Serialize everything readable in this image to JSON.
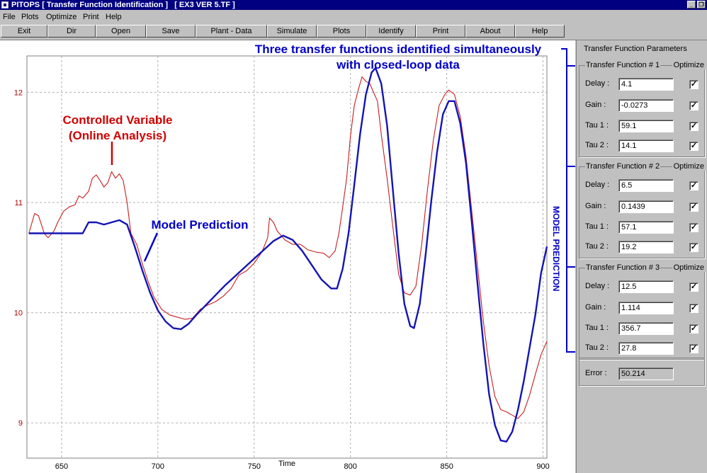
{
  "window": {
    "title": "PITOPS [ Transfer Function Identification ]   [ EX3 VER 5.TF ]",
    "min_glyph": "_",
    "restore_glyph": "❐"
  },
  "menu": [
    "File",
    "Plots",
    "Optimize",
    "Print",
    "Help"
  ],
  "toolbar": [
    "Exit",
    "Dir",
    "Open",
    "Save",
    "Plant - Data",
    "Simulate",
    "Plots",
    "Identify",
    "Print",
    "About",
    "Help"
  ],
  "panel": {
    "title": "Transfer Function Parameters",
    "optimize_label": "Optimize",
    "check_glyph": "✓",
    "groups": [
      {
        "title": "Transfer Function # 1",
        "fields": [
          {
            "label": "Delay :",
            "value": "4.1"
          },
          {
            "label": "Gain   :",
            "value": "-0.0273"
          },
          {
            "label": "Tau 1 :",
            "value": "59.1"
          },
          {
            "label": "Tau 2 :",
            "value": "14.1"
          }
        ]
      },
      {
        "title": "Transfer Function # 2",
        "fields": [
          {
            "label": "Delay :",
            "value": "6.5"
          },
          {
            "label": "Gain   :",
            "value": "0.1439"
          },
          {
            "label": "Tau 1 :",
            "value": "57.1"
          },
          {
            "label": "Tau 2 :",
            "value": "19.2"
          }
        ]
      },
      {
        "title": "Transfer Function # 3",
        "fields": [
          {
            "label": "Delay :",
            "value": "12.5"
          },
          {
            "label": "Gain   :",
            "value": "1.114"
          },
          {
            "label": "Tau 1 :",
            "value": "356.7"
          },
          {
            "label": "Tau 2 :",
            "value": "27.8"
          }
        ]
      }
    ],
    "error": {
      "label": "Error :",
      "value": "50.214"
    }
  },
  "plot": {
    "annotation_top_line1": "Three transfer functions identified simultaneously",
    "annotation_top_line2": "with closed-loop data",
    "annotation_cv_line1": "Controlled Variable",
    "annotation_cv_line2": "(Online Analysis)",
    "annotation_model": "Model Prediction",
    "side_label": "MODEL PREDICTION"
  },
  "chart_data": {
    "type": "line",
    "xlabel": "Time",
    "ylabel": "",
    "xlim": [
      632,
      902
    ],
    "ylim": [
      8.68,
      12.33
    ],
    "x_ticks": [
      650,
      700,
      750,
      800,
      850,
      900
    ],
    "y_ticks": [
      9,
      10,
      11,
      12
    ],
    "grid": true,
    "series": [
      {
        "name": "Controlled Variable (Online Analysis)",
        "color": "#c81e1e",
        "points": [
          [
            633,
            10.72
          ],
          [
            636,
            10.9
          ],
          [
            638,
            10.88
          ],
          [
            641,
            10.72
          ],
          [
            643,
            10.68
          ],
          [
            646,
            10.74
          ],
          [
            648,
            10.82
          ],
          [
            651,
            10.92
          ],
          [
            654,
            10.96
          ],
          [
            657,
            10.98
          ],
          [
            659,
            11.06
          ],
          [
            661,
            11.04
          ],
          [
            664,
            11.1
          ],
          [
            666,
            11.22
          ],
          [
            668,
            11.25
          ],
          [
            670,
            11.2
          ],
          [
            672,
            11.14
          ],
          [
            674,
            11.18
          ],
          [
            676,
            11.28
          ],
          [
            678,
            11.22
          ],
          [
            680,
            11.26
          ],
          [
            682,
            11.2
          ],
          [
            684,
            11.0
          ],
          [
            686,
            10.72
          ],
          [
            689,
            10.62
          ],
          [
            692,
            10.44
          ],
          [
            695,
            10.28
          ],
          [
            698,
            10.14
          ],
          [
            702,
            10.03
          ],
          [
            706,
            9.98
          ],
          [
            710,
            9.96
          ],
          [
            714,
            9.94
          ],
          [
            718,
            9.95
          ],
          [
            722,
            10.03
          ],
          [
            726,
            10.07
          ],
          [
            730,
            10.1
          ],
          [
            734,
            10.15
          ],
          [
            738,
            10.22
          ],
          [
            742,
            10.34
          ],
          [
            746,
            10.38
          ],
          [
            750,
            10.45
          ],
          [
            754,
            10.55
          ],
          [
            757,
            10.68
          ],
          [
            758,
            10.86
          ],
          [
            760,
            10.82
          ],
          [
            762,
            10.74
          ],
          [
            766,
            10.66
          ],
          [
            770,
            10.62
          ],
          [
            774,
            10.62
          ],
          [
            778,
            10.57
          ],
          [
            782,
            10.55
          ],
          [
            786,
            10.54
          ],
          [
            789,
            10.5
          ],
          [
            792,
            10.56
          ],
          [
            794,
            10.72
          ],
          [
            796,
            10.96
          ],
          [
            798,
            11.22
          ],
          [
            800,
            11.6
          ],
          [
            802,
            11.88
          ],
          [
            804,
            12.02
          ],
          [
            806,
            12.14
          ],
          [
            808,
            12.1
          ],
          [
            810,
            12.08
          ],
          [
            812,
            12.0
          ],
          [
            814,
            11.92
          ],
          [
            816,
            11.62
          ],
          [
            819,
            11.22
          ],
          [
            822,
            10.78
          ],
          [
            825,
            10.35
          ],
          [
            828,
            10.18
          ],
          [
            831,
            10.16
          ],
          [
            834,
            10.24
          ],
          [
            837,
            10.62
          ],
          [
            840,
            11.12
          ],
          [
            843,
            11.56
          ],
          [
            846,
            11.88
          ],
          [
            849,
            11.98
          ],
          [
            851,
            12.02
          ],
          [
            854,
            11.98
          ],
          [
            857,
            11.78
          ],
          [
            860,
            11.42
          ],
          [
            863,
            10.92
          ],
          [
            866,
            10.42
          ],
          [
            869,
            9.92
          ],
          [
            872,
            9.52
          ],
          [
            875,
            9.24
          ],
          [
            878,
            9.12
          ],
          [
            881,
            9.1
          ],
          [
            884,
            9.07
          ],
          [
            887,
            9.04
          ],
          [
            890,
            9.1
          ],
          [
            893,
            9.25
          ],
          [
            896,
            9.44
          ],
          [
            899,
            9.62
          ],
          [
            902,
            9.74
          ]
        ]
      },
      {
        "name": "Model Prediction",
        "color": "#1414b4",
        "points": [
          [
            633,
            10.72
          ],
          [
            661,
            10.72
          ],
          [
            664,
            10.82
          ],
          [
            668,
            10.82
          ],
          [
            672,
            10.8
          ],
          [
            676,
            10.82
          ],
          [
            680,
            10.84
          ],
          [
            684,
            10.8
          ],
          [
            688,
            10.6
          ],
          [
            692,
            10.38
          ],
          [
            696,
            10.18
          ],
          [
            700,
            10.02
          ],
          [
            704,
            9.92
          ],
          [
            708,
            9.86
          ],
          [
            712,
            9.85
          ],
          [
            716,
            9.9
          ],
          [
            720,
            9.98
          ],
          [
            725,
            10.07
          ],
          [
            730,
            10.16
          ],
          [
            735,
            10.25
          ],
          [
            740,
            10.33
          ],
          [
            745,
            10.41
          ],
          [
            750,
            10.49
          ],
          [
            755,
            10.57
          ],
          [
            760,
            10.65
          ],
          [
            765,
            10.7
          ],
          [
            770,
            10.66
          ],
          [
            775,
            10.56
          ],
          [
            780,
            10.43
          ],
          [
            785,
            10.3
          ],
          [
            790,
            10.22
          ],
          [
            793,
            10.22
          ],
          [
            796,
            10.4
          ],
          [
            799,
            10.72
          ],
          [
            802,
            11.16
          ],
          [
            805,
            11.62
          ],
          [
            808,
            11.98
          ],
          [
            811,
            12.18
          ],
          [
            813,
            12.22
          ],
          [
            816,
            12.08
          ],
          [
            819,
            11.7
          ],
          [
            822,
            11.12
          ],
          [
            825,
            10.54
          ],
          [
            828,
            10.08
          ],
          [
            831,
            9.88
          ],
          [
            833,
            9.86
          ],
          [
            836,
            10.08
          ],
          [
            839,
            10.52
          ],
          [
            842,
            11.02
          ],
          [
            845,
            11.46
          ],
          [
            848,
            11.8
          ],
          [
            851,
            11.92
          ],
          [
            854,
            11.92
          ],
          [
            857,
            11.72
          ],
          [
            860,
            11.36
          ],
          [
            863,
            10.82
          ],
          [
            866,
            10.26
          ],
          [
            869,
            9.72
          ],
          [
            872,
            9.26
          ],
          [
            875,
            8.98
          ],
          [
            878,
            8.84
          ],
          [
            881,
            8.83
          ],
          [
            884,
            8.92
          ],
          [
            887,
            9.12
          ],
          [
            890,
            9.38
          ],
          [
            893,
            9.68
          ],
          [
            896,
            9.98
          ],
          [
            899,
            10.36
          ],
          [
            902,
            10.6
          ]
        ]
      }
    ]
  }
}
